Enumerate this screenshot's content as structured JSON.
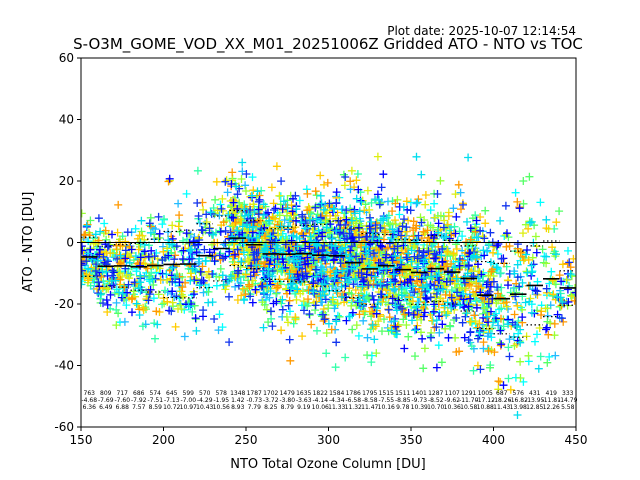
{
  "chart_data": {
    "type": "scatter",
    "plot_date": "Plot date: 2025-10-07 12:14:54",
    "title": "S-O3M_GOME_VOD_XX_M01_20251006Z Gridded ATO - NTO vs TOC",
    "xlabel": "NTO Total Ozone Column [DU]",
    "ylabel": "ATO - NTO [DU]",
    "xlim": [
      150,
      450
    ],
    "ylim": [
      -60,
      60
    ],
    "xticks": [
      150,
      200,
      250,
      300,
      350,
      400,
      450
    ],
    "yticks": [
      -60,
      -40,
      -20,
      0,
      20,
      40,
      60
    ],
    "zero_line": 0,
    "bin_width": 10,
    "bins": [
      {
        "x": 155,
        "n": "763",
        "mean": "-4.68",
        "std": "6.36",
        "lo": -11.0,
        "hi": 1.7
      },
      {
        "x": 165,
        "n": "809",
        "mean": "-7.69",
        "std": "6.49",
        "lo": -14.2,
        "hi": -1.2
      },
      {
        "x": 175,
        "n": "717",
        "mean": "-7.60",
        "std": "6.88",
        "lo": -14.5,
        "hi": -0.7
      },
      {
        "x": 185,
        "n": "686",
        "mean": "-7.92",
        "std": "7.57",
        "lo": -15.5,
        "hi": -0.3
      },
      {
        "x": 195,
        "n": "574",
        "mean": "-7.51",
        "std": "8.59",
        "lo": -16.1,
        "hi": 1.1
      },
      {
        "x": 205,
        "n": "645",
        "mean": "-7.13",
        "std": "10.72",
        "lo": -17.9,
        "hi": 3.6
      },
      {
        "x": 215,
        "n": "599",
        "mean": "-7.00",
        "std": "10.97",
        "lo": -18.0,
        "hi": 4.0
      },
      {
        "x": 225,
        "n": "570",
        "mean": "-4.29",
        "std": "10.43",
        "lo": -14.7,
        "hi": 6.1
      },
      {
        "x": 235,
        "n": "578",
        "mean": "-1.95",
        "std": "10.56",
        "lo": -12.5,
        "hi": 8.6
      },
      {
        "x": 245,
        "n": "1348",
        "mean": "1.42",
        "std": "8.93",
        "lo": -7.5,
        "hi": 10.4
      },
      {
        "x": 255,
        "n": "1787",
        "mean": "-0.73",
        "std": "7.79",
        "lo": -8.5,
        "hi": 7.1
      },
      {
        "x": 265,
        "n": "1702",
        "mean": "-3.72",
        "std": "8.25",
        "lo": -12.0,
        "hi": 4.5
      },
      {
        "x": 275,
        "n": "1479",
        "mean": "-3.80",
        "std": "8.79",
        "lo": -12.6,
        "hi": 5.0
      },
      {
        "x": 285,
        "n": "1635",
        "mean": "-3.63",
        "std": "9.19",
        "lo": -12.8,
        "hi": 5.6
      },
      {
        "x": 295,
        "n": "1822",
        "mean": "-4.14",
        "std": "10.06",
        "lo": -14.2,
        "hi": 5.9
      },
      {
        "x": 305,
        "n": "1584",
        "mean": "-4.34",
        "std": "11.33",
        "lo": -15.7,
        "hi": 7.0
      },
      {
        "x": 315,
        "n": "1786",
        "mean": "-6.58",
        "std": "11.32",
        "lo": -17.9,
        "hi": 4.7
      },
      {
        "x": 325,
        "n": "1795",
        "mean": "-8.58",
        "std": "11.47",
        "lo": -20.1,
        "hi": 2.9
      },
      {
        "x": 335,
        "n": "1515",
        "mean": "-7.55",
        "std": "10.16",
        "lo": -17.7,
        "hi": 2.6
      },
      {
        "x": 345,
        "n": "1511",
        "mean": "-8.85",
        "std": "9.78",
        "lo": -18.6,
        "hi": 0.9
      },
      {
        "x": 355,
        "n": "1401",
        "mean": "-9.73",
        "std": "10.39",
        "lo": -20.1,
        "hi": 0.7
      },
      {
        "x": 365,
        "n": "1287",
        "mean": "-8.52",
        "std": "10.70",
        "lo": -19.2,
        "hi": 2.2
      },
      {
        "x": 375,
        "n": "1107",
        "mean": "-9.62",
        "std": "10.36",
        "lo": -20.0,
        "hi": 0.7
      },
      {
        "x": 385,
        "n": "1291",
        "mean": "-11.70",
        "std": "10.58",
        "lo": -22.3,
        "hi": -1.1
      },
      {
        "x": 395,
        "n": "1005",
        "mean": "-17.12",
        "std": "10.88",
        "lo": -28.0,
        "hi": -6.2
      },
      {
        "x": 405,
        "n": "687",
        "mean": "-18.26",
        "std": "11.43",
        "lo": -29.7,
        "hi": -6.8
      },
      {
        "x": 415,
        "n": "576",
        "mean": "-16.82",
        "std": "13.98",
        "lo": -30.8,
        "hi": -2.8
      },
      {
        "x": 425,
        "n": "431",
        "mean": "-13.95",
        "std": "12.85",
        "lo": -26.8,
        "hi": -1.1
      },
      {
        "x": 435,
        "n": "419",
        "mean": "-11.81",
        "std": "12.26",
        "lo": -24.1,
        "hi": 0.5
      },
      {
        "x": 445,
        "n": "333",
        "mean": "-14.79",
        "std": "5.58",
        "lo": -20.4,
        "hi": -9.2
      }
    ],
    "scatter_colors": [
      "#00ffff",
      "#22bbff",
      "#33ffaa",
      "#55ff66",
      "#99ff33",
      "#ddee11",
      "#ffcc00",
      "#ff9900",
      "#0000ff",
      "#1133ee",
      "#00ddee"
    ]
  }
}
